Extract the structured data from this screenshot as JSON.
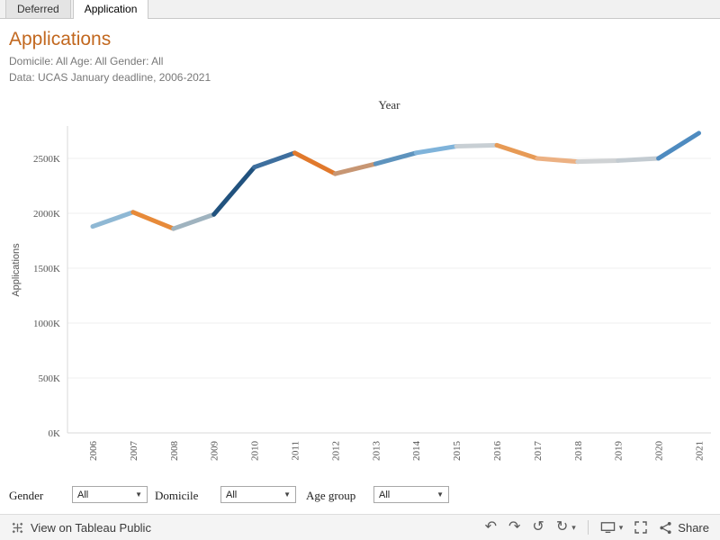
{
  "tabs": [
    {
      "label": "Deferred",
      "active": false
    },
    {
      "label": "Application",
      "active": true
    }
  ],
  "header": {
    "title": "Applications",
    "subtitle_line1": "Domicile: All Age: All Gender: All",
    "subtitle_line2": "Data: UCAS January deadline, 2006-2021"
  },
  "chart_data": {
    "type": "line",
    "title": "Year",
    "xlabel": "Year",
    "ylabel": "Applications",
    "categories": [
      "2006",
      "2007",
      "2008",
      "2009",
      "2010",
      "2011",
      "2012",
      "2013",
      "2014",
      "2015",
      "2016",
      "2017",
      "2018",
      "2019",
      "2020",
      "2021"
    ],
    "values_thousands": [
      1880,
      2010,
      1860,
      1990,
      2420,
      2550,
      2360,
      2450,
      2550,
      2610,
      2620,
      2500,
      2470,
      2480,
      2500,
      2730
    ],
    "unit": "K",
    "y_tick_labels": [
      "0K",
      "500K",
      "1000K",
      "1500K",
      "2000K",
      "2500K"
    ],
    "y_tick_values_thousands": [
      0,
      500,
      1000,
      1500,
      2000,
      2500
    ],
    "ylim_thousands": [
      0,
      2900
    ],
    "grid": true,
    "legend": "none",
    "segment_colors": [
      "#8fb8d4",
      "#e78a39",
      "#9fb3bf",
      "#21527e",
      "#3e6f9e",
      "#e1792c",
      "#c79673",
      "#5e93bd",
      "#7fb3da",
      "#c8cfd4",
      "#e79a55",
      "#ecb183",
      "#cfd2d4",
      "#c3cbd1",
      "#4e8bc0"
    ]
  },
  "filters": [
    {
      "label": "Gender",
      "value": "All"
    },
    {
      "label": "Domicile",
      "value": "All"
    },
    {
      "label": "Age group",
      "value": "All"
    }
  ],
  "toolbar": {
    "view_text": "View on Tableau Public",
    "share_label": "Share",
    "icons": {
      "undo": "↶",
      "redo": "↷",
      "reset": "↺",
      "refresh": "↻",
      "caret": "▾"
    }
  }
}
